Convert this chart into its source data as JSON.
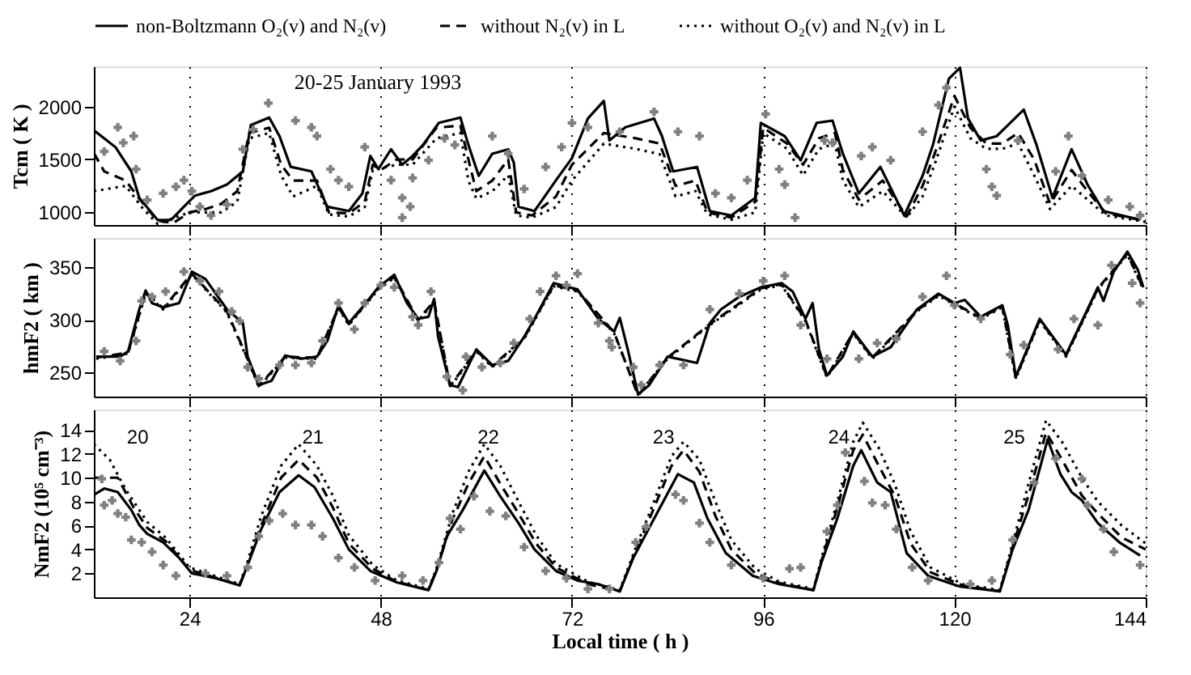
{
  "chart_data": [
    {
      "type": "line",
      "title": "20-25 January 1993",
      "ylabel": "Tcm ( K )",
      "xlim": [
        12,
        144
      ],
      "xticks": [
        24,
        48,
        72,
        96,
        120,
        144
      ],
      "ylim": [
        880,
        2380
      ],
      "yticks": [
        1000,
        1500,
        2000
      ],
      "grid": "x",
      "tick_labels": "y",
      "legend": "top",
      "series": [
        {
          "name": "non-Boltzmann O₂(v) and N₂(v)",
          "color": "#000000",
          "line_style": "solid",
          "x": [
            12.1,
            14.7,
            16.7,
            17.7,
            20,
            21.7,
            23.3,
            24.7,
            26.7,
            28.7,
            30.7,
            31.7,
            34,
            35.3,
            36.7,
            39.3,
            41.3,
            44,
            45.7,
            46.7,
            47.7,
            49.3,
            50.7,
            52,
            53.3,
            55.3,
            58,
            59,
            60.3,
            62,
            64,
            64.7,
            65.3,
            67.3,
            70,
            72,
            74,
            76,
            76.7,
            78.7,
            82.3,
            83.3,
            84.7,
            87.7,
            89.3,
            92,
            95,
            95.7,
            98.7,
            100.7,
            102.7,
            104.7,
            106,
            108,
            110.7,
            113.7,
            116,
            117.3,
            119.3,
            120.7,
            121.7,
            123.3,
            125.3,
            127,
            128.7,
            130.3,
            132.3,
            134.7,
            136.7,
            138.7,
            143.3
          ],
          "values": [
            1770,
            1617,
            1387,
            1137,
            928,
            928,
            1053,
            1158,
            1200,
            1262,
            1387,
            1825,
            1896,
            1720,
            1430,
            1387,
            1053,
            1012,
            1178,
            1533,
            1408,
            1596,
            1450,
            1533,
            1637,
            1846,
            1896,
            1637,
            1345,
            1554,
            1596,
            1470,
            1053,
            1012,
            1304,
            1512,
            1887,
            2054,
            1679,
            1804,
            1887,
            1720,
            1387,
            1429,
            1012,
            970,
            1137,
            1846,
            1720,
            1491,
            1846,
            1867,
            1554,
            1179,
            1429,
            970,
            1345,
            1637,
            2263,
            2367,
            1887,
            1679,
            1720,
            1846,
            1971,
            1637,
            1137,
            1596,
            1262,
            1012,
            929
          ]
        },
        {
          "name": "without N₂(v) in L",
          "color": "#000000",
          "line_style": "dashed",
          "x": [
            12,
            13.3,
            16,
            18,
            20,
            22,
            24,
            26,
            28,
            30,
            31.5,
            34,
            35.5,
            37,
            40,
            41.5,
            44,
            46,
            47,
            48,
            50,
            52,
            55,
            58,
            59,
            60,
            62,
            64,
            65,
            67,
            70,
            72,
            76,
            80,
            83,
            85,
            87.5,
            89,
            92,
            95,
            96,
            99,
            101,
            103,
            105,
            106,
            108,
            111,
            114,
            116,
            117.5,
            120,
            122,
            124,
            126,
            128,
            130,
            132,
            134.7,
            136.7,
            139,
            144
          ],
          "values": [
            1560,
            1387,
            1300,
            1100,
            920,
            900,
            1000,
            1030,
            1080,
            1200,
            1750,
            1800,
            1450,
            1300,
            1300,
            1000,
            990,
            1100,
            1450,
            1400,
            1500,
            1500,
            1800,
            1820,
            1500,
            1200,
            1300,
            1500,
            1000,
            970,
            1150,
            1450,
            1750,
            1700,
            1650,
            1250,
            1300,
            1000,
            950,
            1100,
            1800,
            1650,
            1450,
            1700,
            1750,
            1400,
            1120,
            1300,
            960,
            1250,
            1550,
            2100,
            1800,
            1650,
            1650,
            1750,
            1500,
            1080,
            1400,
            1200,
            990,
            920
          ]
        },
        {
          "name": "without O₂(v) and N₂(v) in L",
          "color": "#000000",
          "line_style": "dotted",
          "x": [
            12,
            16,
            18,
            20,
            24,
            28,
            30,
            31.5,
            34,
            35.5,
            37,
            40,
            41.5,
            44,
            46,
            47,
            50,
            52,
            55,
            58,
            59,
            60,
            62,
            64,
            65,
            67,
            70,
            72,
            76,
            80,
            83,
            85,
            87.5,
            89,
            92,
            95,
            96,
            99,
            101,
            103,
            105,
            106,
            108,
            111,
            114,
            116,
            117.5,
            120,
            122,
            124,
            126,
            128,
            130,
            132,
            134.7,
            136.7,
            139,
            144
          ],
          "values": [
            1200,
            1250,
            1050,
            890,
            1000,
            1000,
            1100,
            1700,
            1750,
            1350,
            1150,
            1250,
            980,
            960,
            1050,
            1400,
            1450,
            1450,
            1700,
            1750,
            1300,
            1130,
            1200,
            1350,
            970,
            950,
            1050,
            1300,
            1650,
            1600,
            1550,
            1150,
            1200,
            980,
            930,
            1000,
            1750,
            1600,
            1350,
            1600,
            1650,
            1300,
            1050,
            1200,
            950,
            1150,
            1450,
            2000,
            1700,
            1600,
            1600,
            1650,
            1350,
            1030,
            1250,
            1120,
            970,
            910
          ]
        },
        {
          "type": "scatter",
          "marker": "cross",
          "color": "#808080",
          "x": [
            13.3,
            15,
            15.7,
            17,
            17.3,
            18.7,
            20.7,
            22.3,
            23.3,
            24.3,
            25.3,
            26.7,
            28.7,
            30.7,
            32,
            33.9,
            37.3,
            39.3,
            40,
            41.7,
            42.7,
            44,
            46,
            49.3,
            50.7,
            51.7,
            50.7,
            52,
            54,
            56,
            57.3,
            62,
            64,
            66,
            68.7,
            70.7,
            72,
            74,
            78,
            82.3,
            85.3,
            88,
            90,
            92,
            94,
            96.3,
            98,
            98.7,
            100,
            103.7,
            104.7,
            108.3,
            109.7,
            112,
            116,
            118,
            119,
            124,
            124.7,
            125.3,
            128,
            132.7,
            134.3,
            136,
            139.3,
            142,
            143.3
          ],
          "values": [
            1575,
            1804,
            1658,
            1721,
            1408,
            1116,
            1179,
            1242,
            1304,
            1200,
            1054,
            971,
            1075,
            1596,
            1783,
            2033,
            1867,
            1804,
            1721,
            1408,
            1304,
            1242,
            1617,
            1304,
            1137,
            1054,
            950,
            1325,
            1492,
            1700,
            1637,
            1721,
            1554,
            1221,
            1429,
            1617,
            1846,
            1804,
            1762,
            1950,
            1762,
            1721,
            1179,
            1137,
            1304,
            1929,
            1408,
            1262,
            950,
            1679,
            1658,
            1533,
            1617,
            1492,
            1762,
            2013,
            2179,
            1408,
            1242,
            1158,
            1679,
            1387,
            1721,
            1346,
            1117,
            1054,
            971
          ]
        }
      ]
    },
    {
      "type": "line",
      "ylabel": "hmF2 ( km )",
      "xlim": [
        12,
        144
      ],
      "xticks": [
        24,
        48,
        72,
        96,
        120,
        144
      ],
      "ylim": [
        227,
        378
      ],
      "yticks": [
        250,
        300,
        350
      ],
      "grid": "x",
      "tick_labels": "y",
      "series": [
        {
          "color": "#000000",
          "line_style": "solid",
          "x": [
            12.3,
            15.3,
            16.3,
            17.7,
            18.5,
            19.3,
            20.7,
            22.7,
            24.3,
            26,
            28.7,
            30.7,
            31.3,
            32.7,
            34.3,
            36,
            38,
            40,
            41.3,
            42.7,
            44,
            45.7,
            47.7,
            49.7,
            51.3,
            52.7,
            54,
            54.7,
            55.2,
            56.7,
            57.7,
            60,
            62,
            64,
            66,
            67.3,
            69.7,
            72.7,
            75.3,
            77.3,
            78,
            79,
            80.3,
            81.7,
            84,
            87.7,
            89.3,
            90.7,
            93,
            95.7,
            98.3,
            99.7,
            101.3,
            102.2,
            103,
            104,
            106,
            107.3,
            109.7,
            112,
            115.3,
            118,
            120,
            121.3,
            123.3,
            126,
            126.7,
            127.7,
            130.7,
            134,
            136.7,
            138,
            138.7,
            140,
            141.7,
            143,
            143.7
          ],
          "values": [
            265,
            265,
            270,
            310,
            328,
            316,
            312,
            316,
            346,
            339,
            310,
            297,
            265,
            238,
            242,
            266,
            263,
            265,
            280,
            314,
            297,
            312,
            331,
            343,
            316,
            301,
            303,
            320,
            284,
            238,
            236,
            272,
            257,
            261,
            284,
            301,
            335,
            329,
            301,
            289,
            302,
            272,
            229,
            238,
            265,
            259,
            297,
            310,
            322,
            331,
            335,
            327,
            301,
            316,
            272,
            247,
            265,
            289,
            265,
            274,
            310,
            325,
            316,
            319,
            303,
            314,
            295,
            246,
            301,
            267,
            310,
            331,
            318,
            346,
            365,
            348,
            331
          ]
        },
        {
          "color": "#000000",
          "line_style": "dashed",
          "x": [
            12.3,
            16.3,
            18.5,
            20.7,
            24.3,
            28.7,
            31.3,
            32.7,
            36,
            40,
            42.7,
            44,
            47.7,
            49.7,
            52.7,
            54.7,
            56.7,
            60,
            62,
            66,
            69.7,
            72.7,
            77.3,
            80.3,
            84,
            89.3,
            95.7,
            98.3,
            101.3,
            104,
            107.3,
            109.7,
            115.3,
            118,
            123.3,
            126,
            127.7,
            130.7,
            134,
            138,
            141.7,
            143.7
          ],
          "values": [
            264,
            269,
            326,
            311,
            344,
            308,
            263,
            237,
            265,
            264,
            312,
            296,
            330,
            341,
            300,
            318,
            237,
            271,
            256,
            283,
            333,
            328,
            288,
            228,
            264,
            296,
            330,
            334,
            300,
            246,
            288,
            264,
            309,
            324,
            302,
            313,
            245,
            300,
            266,
            330,
            363,
            330
          ]
        },
        {
          "color": "#000000",
          "line_style": "dotted",
          "x": [
            12.3,
            16.3,
            18.5,
            20.7,
            24.3,
            28.7,
            31.3,
            32.7,
            36,
            40,
            42.7,
            44,
            47.7,
            49.7,
            52.7,
            54.7,
            56.7,
            60,
            62,
            66,
            69.7,
            72.7,
            77.3,
            80.3,
            84,
            89.3,
            95.7,
            98.3,
            101.3,
            104,
            107.3,
            109.7,
            115.3,
            118,
            123.3,
            126,
            127.7,
            130.7,
            134,
            138,
            141.7,
            143.7
          ],
          "values": [
            263,
            268,
            325,
            310,
            343,
            307,
            262,
            236,
            264,
            263,
            311,
            295,
            329,
            340,
            299,
            317,
            236,
            270,
            255,
            282,
            332,
            327,
            287,
            229,
            263,
            295,
            329,
            333,
            299,
            245,
            287,
            263,
            308,
            323,
            301,
            312,
            244,
            299,
            265,
            329,
            362,
            329
          ]
        },
        {
          "type": "scatter",
          "marker": "cross",
          "color": "#808080",
          "x": [
            13.3,
            15.3,
            17.3,
            18,
            19.3,
            21,
            23.3,
            25.3,
            27.7,
            29.3,
            30.3,
            31.3,
            32.7,
            35.3,
            37.3,
            39.3,
            40.7,
            42.7,
            44.7,
            46,
            48,
            49.7,
            52,
            52.7,
            54.3,
            56.3,
            58.3,
            58.7,
            60.7,
            63,
            64.7,
            66.7,
            68,
            70,
            71.3,
            72.7,
            75.3,
            76.7,
            77,
            79.7,
            80.7,
            83,
            86,
            89.3,
            93,
            96,
            98.7,
            100.7,
            104,
            108,
            110.3,
            112.7,
            116,
            119,
            120,
            123.3,
            127,
            128.7,
            133,
            135,
            138,
            139.7,
            142.3,
            143.3
          ],
          "values": [
            270,
            261,
            280,
            318,
            322,
            327,
            346,
            337,
            327,
            308,
            299,
            255,
            244,
            257,
            257,
            259,
            280,
            316,
            291,
            316,
            333,
            331,
            303,
            295,
            327,
            246,
            233,
            265,
            255,
            259,
            278,
            301,
            327,
            342,
            333,
            344,
            297,
            280,
            274,
            255,
            238,
            257,
            257,
            310,
            325,
            337,
            342,
            295,
            263,
            263,
            278,
            282,
            322,
            342,
            314,
            301,
            267,
            276,
            272,
            301,
            295,
            352,
            335,
            316
          ]
        }
      ]
    },
    {
      "type": "line",
      "xlabel": "Local time ( h )",
      "ylabel": "NmF2 (10⁵ cm⁻³)",
      "xlim": [
        12,
        144
      ],
      "xticks": [
        24,
        48,
        72,
        96,
        120,
        144
      ],
      "ylim": [
        0,
        15.7
      ],
      "yticks": [
        2,
        4,
        6,
        8,
        10,
        12,
        14
      ],
      "grid": "x",
      "annotations": [
        "20",
        "21",
        "22",
        "23",
        "24",
        "25"
      ],
      "series": [
        {
          "color": "#000000",
          "line_style": "solid",
          "x": [
            12.1,
            13.3,
            15,
            16.7,
            17.7,
            18.7,
            20.7,
            22.7,
            24.3,
            27.3,
            30.3,
            31.3,
            33,
            35.3,
            37.7,
            39.7,
            42,
            44,
            46.7,
            50,
            54,
            55,
            56.3,
            58.3,
            61,
            63,
            65.3,
            67.3,
            70,
            72.7,
            75.3,
            78,
            79.7,
            82,
            85.3,
            87.3,
            89,
            91.3,
            94.7,
            98,
            102.3,
            103.3,
            105.3,
            107.3,
            108.3,
            110.3,
            112,
            114,
            116.7,
            120.7,
            125.7,
            127.3,
            129.3,
            131.7,
            133.3,
            134.7,
            136,
            138,
            140.7,
            143.3
          ],
          "values": [
            8.6,
            9.1,
            8.8,
            7.3,
            6.05,
            5.3,
            4.6,
            3.3,
            2.0,
            1.6,
            1.0,
            2.7,
            5.7,
            8.8,
            10.2,
            9.2,
            6.6,
            4.0,
            2.2,
            1.25,
            0.6,
            2.2,
            5.1,
            7.3,
            10.6,
            8.45,
            6.2,
            4.0,
            2.2,
            1.4,
            1.1,
            0.5,
            3.3,
            6.2,
            10.3,
            9.6,
            6.6,
            3.7,
            1.8,
            1.1,
            0.6,
            2.9,
            6.6,
            11.0,
            12.3,
            9.6,
            8.8,
            3.7,
            1.8,
            0.9,
            0.5,
            4.0,
            7.3,
            13.2,
            10.3,
            8.8,
            8.1,
            6.2,
            4.6,
            3.5
          ]
        },
        {
          "color": "#000000",
          "line_style": "dashed",
          "x": [
            12,
            15,
            17,
            18.7,
            21,
            24,
            28,
            30.3,
            31.3,
            33,
            35.5,
            37.7,
            40,
            42,
            44,
            47,
            50,
            54,
            55,
            57,
            59,
            61,
            63,
            65.3,
            67.5,
            70,
            74,
            78,
            79.7,
            82,
            84.5,
            86,
            88,
            90,
            92,
            95,
            98,
            102.3,
            103.3,
            105.3,
            107.3,
            108.5,
            110.5,
            112.5,
            114.5,
            117,
            121,
            125.7,
            127.3,
            129.5,
            131.5,
            133.5,
            136,
            138,
            141,
            144
          ],
          "values": [
            10,
            10,
            7.5,
            5.8,
            4.7,
            2.3,
            1.5,
            1.0,
            2.8,
            6.0,
            10,
            11.5,
            10,
            7.5,
            4.5,
            2.4,
            1.3,
            0.6,
            2.3,
            6.5,
            9.5,
            11.8,
            9.5,
            7,
            4.5,
            2.5,
            1.1,
            0.5,
            3.4,
            7,
            11,
            12.3,
            10.5,
            6.8,
            4.0,
            2,
            1.2,
            0.6,
            3,
            7.5,
            12.3,
            13.6,
            11,
            8.5,
            4.5,
            2.1,
            1.0,
            0.5,
            4.2,
            9,
            13.8,
            11.5,
            8.5,
            7,
            5,
            4.0
          ]
        },
        {
          "color": "#000000",
          "line_style": "dotted",
          "x": [
            12,
            14,
            16,
            18.7,
            21,
            24,
            28,
            30.3,
            31.3,
            33,
            35.5,
            37.7,
            40,
            42,
            44,
            47,
            50,
            54,
            55,
            57,
            59,
            61,
            63,
            65.3,
            67.5,
            70,
            74,
            78,
            79.7,
            82,
            84.5,
            86,
            88,
            90,
            92,
            95,
            98,
            102.3,
            103.3,
            105.3,
            107.3,
            108.5,
            110.5,
            112.5,
            114.5,
            117,
            121,
            125.7,
            127.3,
            129.5,
            131.5,
            133.5,
            136,
            138,
            141,
            144
          ],
          "values": [
            12.8,
            11.5,
            9,
            6.3,
            5,
            2.5,
            1.6,
            1.1,
            3,
            6.8,
            11,
            12.8,
            11,
            8.5,
            5.2,
            2.7,
            1.4,
            0.7,
            2.4,
            7,
            10.5,
            12.8,
            11,
            8,
            5.2,
            2.8,
            1.3,
            0.6,
            3.6,
            7.5,
            11.8,
            13,
            11.5,
            8,
            4.8,
            2.4,
            1.3,
            0.7,
            3.2,
            8,
            13,
            14.6,
            12.5,
            9.5,
            5.5,
            2.5,
            1.1,
            0.6,
            4.5,
            10,
            14.8,
            13,
            10,
            8,
            6,
            4.5
          ]
        },
        {
          "type": "scatter",
          "marker": "cross",
          "color": "#808080",
          "x": [
            13,
            13.3,
            14.3,
            15,
            16,
            16.7,
            18,
            19.3,
            20.7,
            22.3,
            26,
            28.7,
            31.3,
            32.7,
            34,
            35.7,
            37.3,
            39.3,
            40.7,
            42.7,
            44.7,
            47.3,
            50.7,
            53.3,
            55.3,
            56.7,
            58,
            59.7,
            61.7,
            63.7,
            66,
            68.7,
            71.3,
            74,
            76.7,
            80,
            81.3,
            85,
            86,
            88,
            89.3,
            92,
            96,
            99.3,
            100.7,
            104,
            105.3,
            106.3,
            108.7,
            109.7,
            111.3,
            112.7,
            114.7,
            116.7,
            122,
            124.7,
            127.3,
            130,
            132.7,
            136,
            136.7,
            138.7,
            140,
            143.3
          ],
          "values": [
            9.9,
            7.7,
            8.1,
            7.0,
            6.7,
            4.8,
            4.6,
            3.8,
            2.7,
            1.8,
            2.0,
            1.8,
            2.5,
            5.1,
            6.4,
            7.0,
            6.05,
            6.05,
            5.1,
            3.3,
            2.5,
            1.4,
            1.8,
            1.4,
            2.9,
            6.6,
            5.7,
            8.45,
            7.2,
            6.8,
            4.2,
            2.2,
            1.6,
            0.7,
            0.7,
            4.6,
            5.9,
            8.6,
            8.1,
            6.2,
            4.6,
            2.7,
            1.6,
            2.4,
            2.5,
            5.5,
            7.7,
            12.1,
            9.7,
            7.9,
            7.7,
            5.7,
            2.5,
            1.4,
            1.1,
            1.4,
            4.8,
            9.6,
            11.6,
            9.9,
            7.7,
            5.7,
            3.8,
            2.7
          ]
        }
      ]
    }
  ]
}
